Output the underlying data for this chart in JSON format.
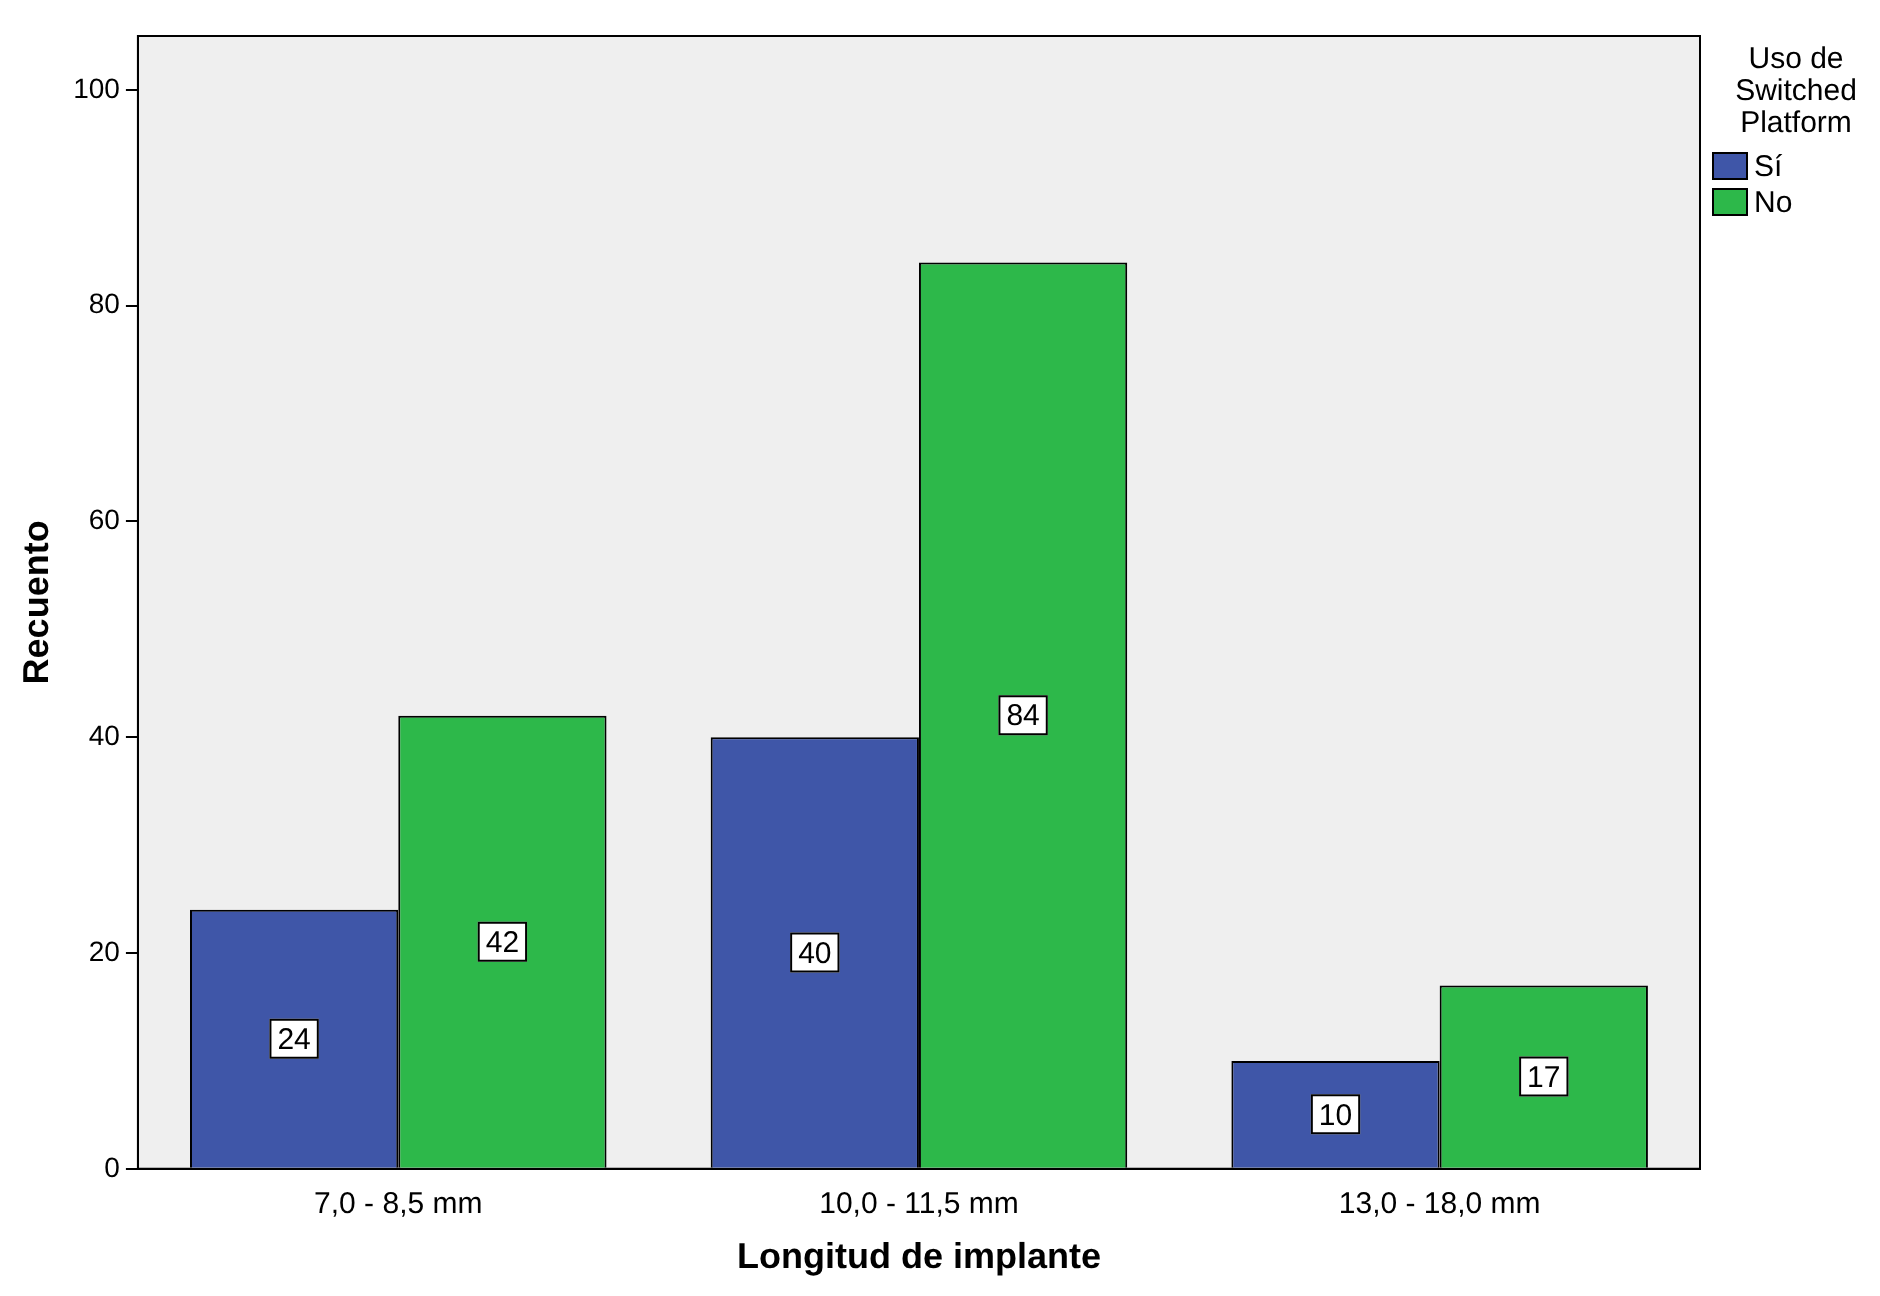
{
  "chart_data": {
    "type": "bar",
    "xlabel": "Longitud de implante",
    "ylabel": "Recuento",
    "legend_title": "Uso de Switched Platform",
    "categories": [
      "7,0 - 8,5 mm",
      "10,0 - 11,5 mm",
      "13,0 - 18,0 mm"
    ],
    "series": [
      {
        "name": "Sí",
        "color": "#3f56a8",
        "values": [
          24,
          40,
          10
        ]
      },
      {
        "name": "No",
        "color": "#2db84a",
        "values": [
          42,
          84,
          17
        ]
      }
    ],
    "ylim": [
      0,
      105
    ],
    "yticks": [
      0,
      20,
      40,
      60,
      80,
      100
    ],
    "grid": false,
    "legend": "top right",
    "data_labels": true
  }
}
